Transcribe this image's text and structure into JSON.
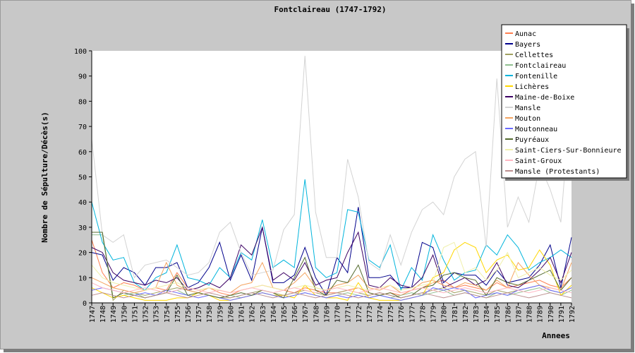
{
  "chart_data": {
    "type": "line",
    "title": "Fontclaireau (1747-1792)",
    "xlabel": "Annees",
    "ylabel": "Nombre de Sépulture/Décès(s)",
    "ylim": [
      0,
      100
    ],
    "yticks": [
      0,
      10,
      20,
      30,
      40,
      50,
      60,
      70,
      80,
      90,
      100
    ],
    "grid": false,
    "legend_position": "top-right",
    "x": [
      "1747",
      "1748",
      "1749",
      "1750",
      "1751",
      "1752",
      "1753",
      "1754",
      "1755",
      "1756",
      "1757",
      "1758",
      "1759",
      "1760",
      "1761",
      "1762",
      "1763",
      "1764",
      "1765",
      "1766",
      "1767",
      "1768",
      "1769",
      "1770",
      "1771",
      "1772",
      "1773",
      "1774",
      "1775",
      "1776",
      "1777",
      "1778",
      "1779",
      "1780",
      "1781",
      "1782",
      "1783",
      "1784",
      "1785",
      "1786",
      "1787",
      "1788",
      "1789",
      "1790",
      "1791",
      "1792"
    ],
    "series": [
      {
        "name": "Aunac",
        "color": "#ff7f50",
        "values": [
          25,
          12,
          6,
          8,
          7,
          5,
          6,
          5,
          12,
          6,
          5,
          6,
          4,
          3,
          5,
          6,
          7,
          6,
          5,
          4,
          6,
          5,
          4,
          4,
          5,
          6,
          4,
          3,
          4,
          3,
          5,
          6,
          8,
          9,
          6,
          7,
          6,
          5,
          8,
          6,
          7,
          8,
          9,
          7,
          6,
          10
        ]
      },
      {
        "name": "Bayers",
        "color": "#00008b",
        "values": [
          20,
          19,
          9,
          14,
          12,
          7,
          14,
          14,
          16,
          6,
          8,
          14,
          24,
          9,
          19,
          9,
          30,
          8,
          8,
          11,
          22,
          10,
          3,
          18,
          12,
          38,
          10,
          10,
          11,
          6,
          6,
          24,
          22,
          8,
          12,
          11,
          11,
          7,
          13,
          8,
          9,
          10,
          15,
          23,
          6,
          26
        ]
      },
      {
        "name": "Cellettes",
        "color": "#a0a060",
        "values": [
          28,
          28,
          1,
          5,
          4,
          3,
          4,
          5,
          6,
          5,
          4,
          3,
          2,
          2,
          3,
          4,
          5,
          4,
          3,
          4,
          5,
          4,
          3,
          4,
          5,
          4,
          3,
          4,
          3,
          2,
          3,
          4,
          5,
          6,
          4,
          5,
          4,
          3,
          5,
          4,
          5,
          6,
          7,
          5,
          4,
          6
        ]
      },
      {
        "name": "Fontclaireau",
        "color": "#90c090",
        "values": [
          27,
          27,
          2,
          3,
          4,
          2,
          3,
          4,
          5,
          3,
          4,
          3,
          2,
          3,
          2,
          3,
          4,
          3,
          2,
          3,
          4,
          3,
          2,
          3,
          4,
          3,
          2,
          3,
          2,
          3,
          4,
          3,
          4,
          5,
          3,
          4,
          3,
          2,
          4,
          3,
          4,
          5,
          6,
          4,
          3,
          5
        ]
      },
      {
        "name": "Fontenille",
        "color": "#00b4dc",
        "values": [
          40,
          24,
          17,
          18,
          8,
          5,
          10,
          12,
          23,
          10,
          9,
          7,
          14,
          10,
          20,
          17,
          33,
          14,
          17,
          14,
          49,
          14,
          10,
          12,
          37,
          36,
          17,
          14,
          23,
          5,
          14,
          9,
          27,
          17,
          9,
          12,
          13,
          23,
          19,
          27,
          22,
          13,
          16,
          18,
          21,
          18
        ]
      },
      {
        "name": "Lichères",
        "color": "#ffd700",
        "values": [
          6,
          4,
          2,
          3,
          2,
          1,
          1,
          1,
          2,
          2,
          4,
          3,
          1,
          1,
          2,
          3,
          4,
          3,
          3,
          2,
          7,
          3,
          2,
          2,
          1,
          8,
          2,
          1,
          1,
          1,
          2,
          3,
          10,
          12,
          21,
          24,
          22,
          12,
          17,
          19,
          13,
          14,
          21,
          15,
          3,
          7
        ]
      },
      {
        "name": "Maine-de-Boixe",
        "color": "#3c0064",
        "values": [
          22,
          20,
          12,
          9,
          8,
          7,
          9,
          8,
          10,
          5,
          6,
          8,
          6,
          10,
          23,
          19,
          30,
          9,
          12,
          9,
          16,
          7,
          9,
          10,
          20,
          28,
          7,
          6,
          10,
          7,
          6,
          10,
          19,
          6,
          8,
          10,
          7,
          9,
          16,
          7,
          6,
          9,
          13,
          18,
          8,
          20
        ]
      },
      {
        "name": "Mansle",
        "color": "#d3d3d3",
        "values": [
          65,
          27,
          24,
          27,
          10,
          15,
          16,
          17,
          14,
          11,
          12,
          16,
          28,
          32,
          20,
          11,
          12,
          13,
          29,
          35,
          98,
          36,
          18,
          18,
          57,
          42,
          16,
          13,
          27,
          15,
          28,
          37,
          40,
          35,
          50,
          57,
          60,
          22,
          89,
          30,
          42,
          32,
          55,
          45,
          32,
          85
        ]
      },
      {
        "name": "Mouton",
        "color": "#f4a460",
        "values": [
          10,
          8,
          6,
          5,
          4,
          5,
          6,
          16,
          7,
          5,
          4,
          6,
          5,
          4,
          7,
          8,
          16,
          6,
          5,
          8,
          12,
          6,
          5,
          7,
          8,
          11,
          6,
          5,
          7,
          4,
          5,
          8,
          9,
          7,
          6,
          8,
          7,
          5,
          9,
          6,
          16,
          11,
          7,
          6,
          5,
          16
        ]
      },
      {
        "name": "Moutonneau",
        "color": "#6a6aff",
        "values": [
          5,
          6,
          5,
          4,
          3,
          4,
          3,
          5,
          4,
          3,
          2,
          3,
          2,
          1,
          2,
          3,
          4,
          3,
          2,
          3,
          4,
          3,
          2,
          3,
          2,
          3,
          2,
          3,
          2,
          1,
          2,
          3,
          6,
          5,
          6,
          5,
          2,
          3,
          4,
          3,
          5,
          6,
          7,
          5,
          4,
          6
        ]
      },
      {
        "name": "Puyréaux",
        "color": "#556b2f",
        "values": [
          28,
          28,
          2,
          4,
          3,
          2,
          3,
          4,
          11,
          3,
          4,
          3,
          2,
          3,
          4,
          3,
          5,
          4,
          2,
          10,
          18,
          5,
          3,
          9,
          8,
          15,
          4,
          3,
          4,
          2,
          3,
          6,
          7,
          11,
          12,
          10,
          9,
          3,
          10,
          8,
          7,
          9,
          11,
          13,
          5,
          10
        ]
      },
      {
        "name": "Saint-Ciers-Sur-Bonnieure",
        "color": "#f0f0aa",
        "values": [
          15,
          10,
          8,
          7,
          6,
          5,
          6,
          7,
          8,
          6,
          5,
          6,
          5,
          4,
          5,
          6,
          7,
          6,
          5,
          6,
          7,
          6,
          5,
          6,
          7,
          6,
          5,
          6,
          7,
          5,
          6,
          7,
          8,
          22,
          24,
          12,
          14,
          9,
          13,
          20,
          10,
          12,
          14,
          11,
          9,
          13
        ]
      },
      {
        "name": "Saint-Groux",
        "color": "#ffb6c1",
        "values": [
          8,
          6,
          5,
          4,
          5,
          6,
          5,
          4,
          5,
          6,
          5,
          4,
          5,
          4,
          5,
          6,
          5,
          4,
          5,
          6,
          5,
          4,
          5,
          6,
          5,
          4,
          5,
          6,
          5,
          4,
          5,
          6,
          5,
          4,
          5,
          6,
          5,
          4,
          5,
          6,
          5,
          4,
          5,
          6,
          5,
          4
        ]
      },
      {
        "name": "Mansle (Protestants)",
        "color": "#bc8f8f",
        "values": [
          3,
          4,
          3,
          2,
          3,
          2,
          3,
          4,
          3,
          2,
          3,
          4,
          3,
          2,
          3,
          4,
          3,
          2,
          3,
          4,
          3,
          2,
          3,
          4,
          3,
          2,
          3,
          4,
          3,
          2,
          3,
          4,
          3,
          2,
          3,
          4,
          3,
          2,
          3,
          4,
          3,
          2,
          3,
          4,
          3,
          2
        ]
      }
    ]
  }
}
